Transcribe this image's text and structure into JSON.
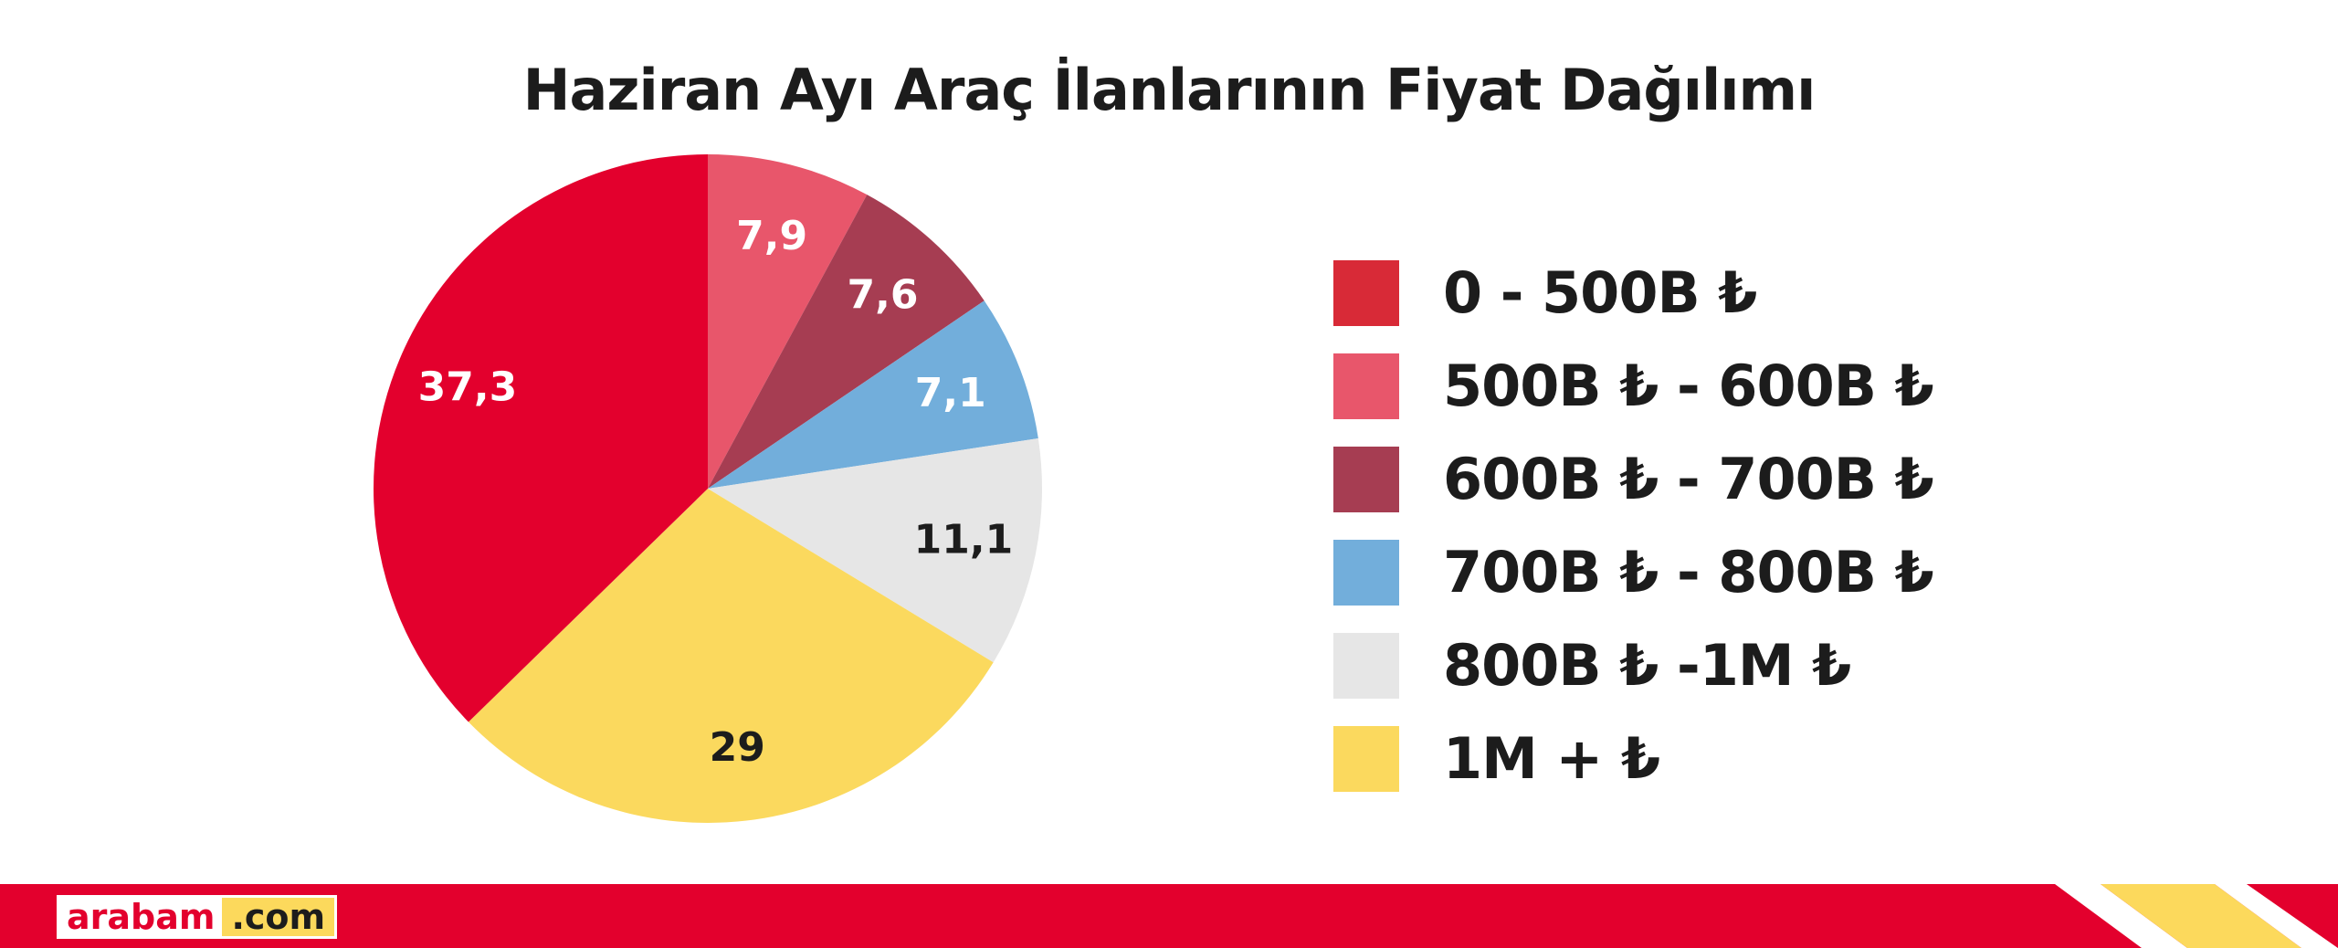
{
  "chart_data": {
    "type": "pie",
    "title": "Haziran Ayı Araç İlanlarının Fiyat Dağılımı",
    "slices": [
      {
        "label": "500B ₺ - 600B ₺",
        "value": 7.9,
        "value_label": "7,9",
        "color": "#e8566b",
        "text_color": "#ffffff"
      },
      {
        "label": "600B ₺ - 700B ₺",
        "value": 7.6,
        "value_label": "7,6",
        "color": "#a63d52",
        "text_color": "#ffffff"
      },
      {
        "label": "700B ₺ - 800B ₺",
        "value": 7.1,
        "value_label": "7,1",
        "color": "#72aedb",
        "text_color": "#ffffff"
      },
      {
        "label": "800B ₺ -1M ₺",
        "value": 11.1,
        "value_label": "11,1",
        "color": "#e6e6e6",
        "text_color": "#1c1c1c"
      },
      {
        "label": "1M + ₺",
        "value": 29,
        "value_label": "29",
        "color": "#fbd95e",
        "text_color": "#1c1c1c"
      },
      {
        "label": "0 - 500B ₺",
        "value": 37.3,
        "value_label": "37,3",
        "color": "#e3002d",
        "text_color": "#ffffff"
      }
    ],
    "legend": [
      {
        "label": "0 - 500B ₺",
        "color": "#d82a37"
      },
      {
        "label": "500B ₺ - 600B ₺",
        "color": "#e8566b"
      },
      {
        "label": "600B ₺ - 700B ₺",
        "color": "#a63d52"
      },
      {
        "label": "700B ₺ - 800B ₺",
        "color": "#72aedb"
      },
      {
        "label": "800B ₺ -1M ₺",
        "color": "#e6e6e6"
      },
      {
        "label": "1M + ₺",
        "color": "#fbd95e"
      }
    ],
    "legend_position": "right"
  },
  "brand": {
    "logo_part1": "arabam",
    "logo_part2": ".com",
    "red": "#e3002d",
    "yellow": "#fcd95c"
  }
}
